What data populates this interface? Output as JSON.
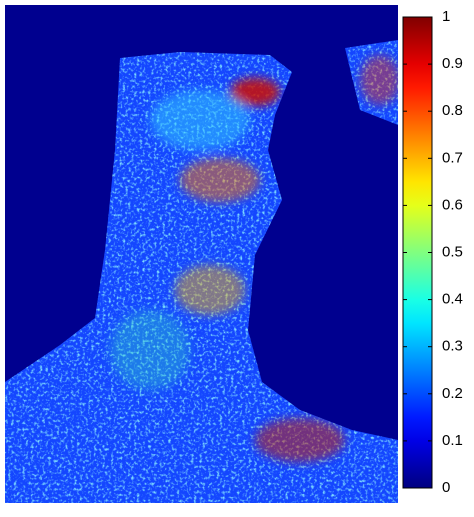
{
  "chart_data": {
    "type": "heatmap",
    "colormap": "jet",
    "clim": [
      0,
      1
    ],
    "cticks": [
      0,
      0.1,
      0.2,
      0.3,
      0.4,
      0.5,
      0.6,
      0.7,
      0.8,
      0.9,
      1
    ]
  }
}
